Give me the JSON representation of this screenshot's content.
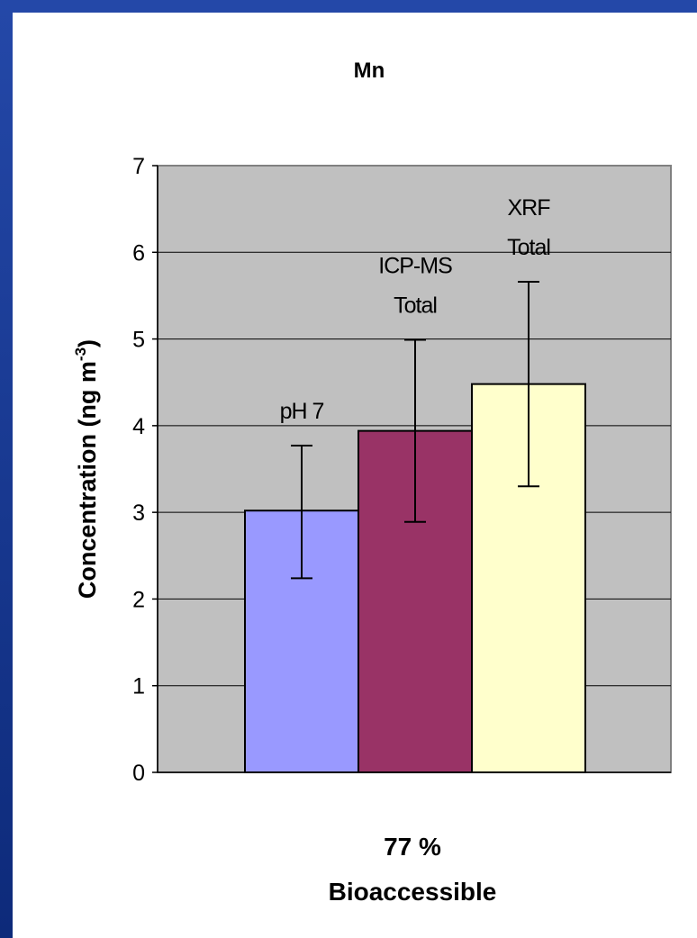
{
  "chart_data": {
    "type": "bar",
    "title": "Mn",
    "ylabel": "Concentration (ng m",
    "ylabel_sup": "-3",
    "ylabel_close": ")",
    "category_label_line1": "77 %",
    "category_label_line2": "Bioaccessible",
    "ylim": [
      0,
      7
    ],
    "yticks": [
      "0",
      "1",
      "2",
      "3",
      "4",
      "5",
      "6",
      "7"
    ],
    "grid": true,
    "plot_background": "#c0c0c0",
    "series": [
      {
        "name": "pH 7",
        "label_lines": [
          "pH 7"
        ],
        "value": 3.02,
        "error_low": 2.24,
        "error_high": 3.77,
        "color": "#9999ff"
      },
      {
        "name": "ICP-MS Total",
        "label_lines": [
          "ICP-MS",
          "Total"
        ],
        "value": 3.94,
        "error_low": 2.89,
        "error_high": 4.99,
        "color": "#993366"
      },
      {
        "name": "XRF Total",
        "label_lines": [
          "XRF",
          "Total"
        ],
        "value": 4.48,
        "error_low": 3.3,
        "error_high": 5.66,
        "color": "#ffffcc"
      }
    ]
  }
}
